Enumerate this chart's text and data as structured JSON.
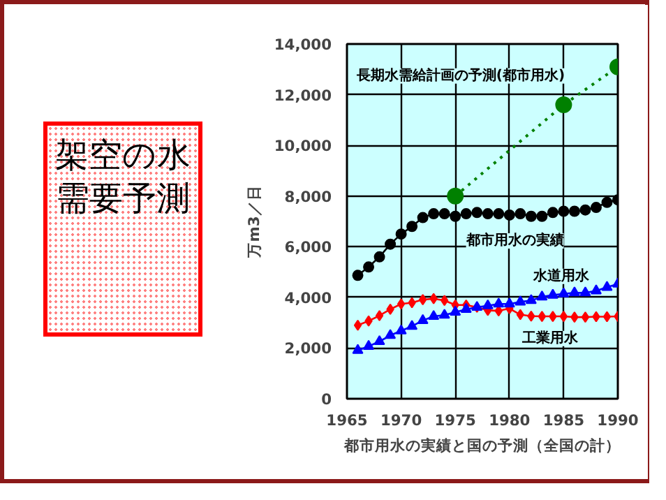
{
  "chart_data": {
    "type": "line",
    "title": "架空の水需要予測",
    "xlabel": "都市用水の実績と国の予測（全国の計）",
    "ylabel": "万m3／日",
    "xlim": [
      1965,
      1990
    ],
    "xticks": [
      1965,
      1970,
      1975,
      1980,
      1985,
      1990
    ],
    "ylim": [
      0,
      14000
    ],
    "yticks": [
      0,
      {
        "value": 2000,
        "label": "2,000"
      },
      {
        "value": 4000,
        "label": "4,000"
      },
      {
        "value": 6000,
        "label": "6,000"
      },
      {
        "value": 8000,
        "label": "8,000"
      },
      {
        "value": 10000,
        "label": "10,000"
      },
      {
        "value": 12000,
        "label": "12,000"
      },
      {
        "value": 14000,
        "label": "14,000"
      }
    ],
    "grid": true,
    "series": [
      {
        "name": "長期水需給計画の予測(都市用水)",
        "color": "#008000",
        "marker": "circle",
        "line_style": "dotted",
        "x": [
          1975,
          1985,
          1990
        ],
        "values": [
          8000,
          11600,
          13100
        ]
      },
      {
        "name": "都市用水の実績",
        "color": "#000000",
        "marker": "circle",
        "line_style": "solid",
        "x": [
          1966,
          1967,
          1968,
          1969,
          1970,
          1971,
          1972,
          1973,
          1974,
          1975,
          1976,
          1977,
          1978,
          1979,
          1980,
          1981,
          1982,
          1983,
          1984,
          1985,
          1986,
          1987,
          1988,
          1989,
          1990
        ],
        "values": [
          4870,
          5200,
          5600,
          6100,
          6500,
          6800,
          7150,
          7300,
          7300,
          7200,
          7300,
          7350,
          7300,
          7300,
          7250,
          7300,
          7200,
          7200,
          7350,
          7400,
          7400,
          7450,
          7550,
          7750,
          7850
        ]
      },
      {
        "name": "水道用水",
        "color": "#0000ff",
        "marker": "triangle",
        "line_style": "solid",
        "x": [
          1966,
          1967,
          1968,
          1969,
          1970,
          1971,
          1972,
          1973,
          1974,
          1975,
          1976,
          1977,
          1978,
          1979,
          1980,
          1981,
          1982,
          1983,
          1984,
          1985,
          1986,
          1987,
          1988,
          1989,
          1990
        ],
        "values": [
          1910,
          2070,
          2260,
          2500,
          2680,
          2860,
          3090,
          3250,
          3300,
          3420,
          3530,
          3610,
          3670,
          3740,
          3740,
          3820,
          3880,
          4020,
          4090,
          4140,
          4180,
          4180,
          4260,
          4400,
          4530
        ]
      },
      {
        "name": "工業用水",
        "color": "#ff0000",
        "marker": "diamond",
        "line_style": "solid",
        "x": [
          1966,
          1967,
          1968,
          1969,
          1970,
          1971,
          1972,
          1973,
          1974,
          1975,
          1976,
          1977,
          1978,
          1979,
          1980,
          1981,
          1982,
          1983,
          1984,
          1985,
          1986,
          1987,
          1988,
          1989,
          1990
        ],
        "values": [
          2900,
          3070,
          3280,
          3530,
          3740,
          3790,
          3910,
          3950,
          3880,
          3700,
          3700,
          3610,
          3490,
          3470,
          3560,
          3320,
          3260,
          3250,
          3250,
          3250,
          3220,
          3220,
          3240,
          3240,
          3250
        ]
      }
    ]
  }
}
